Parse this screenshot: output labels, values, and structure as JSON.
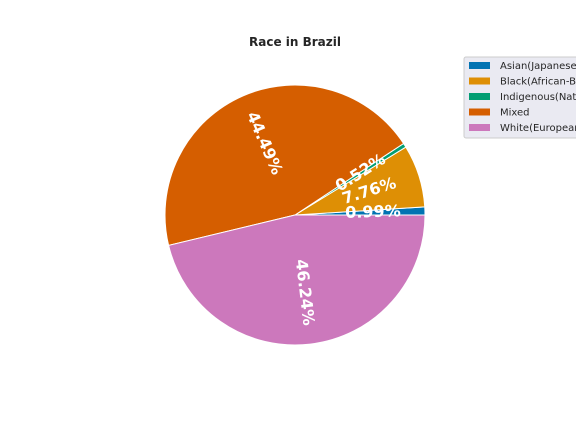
{
  "chart_data": {
    "type": "pie",
    "title": "Race in Brazil",
    "labels": [
      "Asian(Japanese",
      "Black(African-B",
      "Indigenous(Nati",
      "Mixed",
      "White(European"
    ],
    "values": [
      0.99,
      7.76,
      0.52,
      44.49,
      46.24
    ],
    "percent_labels": [
      "0.99%",
      "7.76%",
      "0.52%",
      "44.49%",
      "46.24%"
    ],
    "colors": [
      "#0173b2",
      "#de8f05",
      "#029e73",
      "#d55e00",
      "#cc78bc"
    ],
    "legend_position": "top-right"
  }
}
